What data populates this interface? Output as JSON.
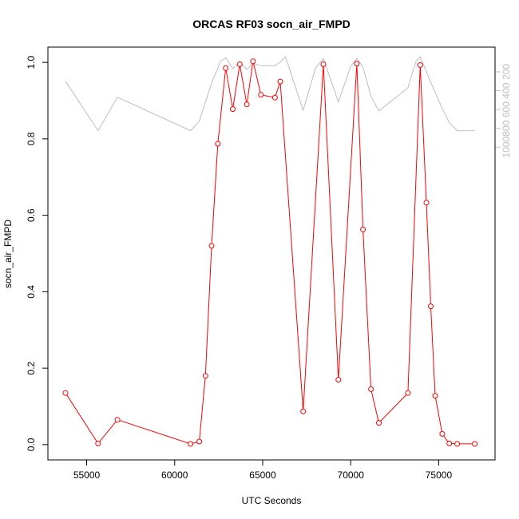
{
  "chart_data": {
    "type": "line",
    "title": "ORCAS RF03 socn_air_FMPD",
    "xlabel": "UTC Seconds",
    "ylabel": "socn_air_FMPD",
    "xlim": [
      52800,
      78200
    ],
    "ylim": [
      -0.04,
      1.04
    ],
    "x_ticks": [
      55000,
      60000,
      65000,
      70000,
      75000
    ],
    "y_ticks": [
      0.0,
      0.2,
      0.4,
      0.6,
      0.8,
      1.0
    ],
    "y_tick_labels": [
      "0.0",
      "0.2",
      "0.4",
      "0.6",
      "0.8",
      "1.0"
    ],
    "y2_reversed": true,
    "y2_ticks": [
      200,
      400,
      600,
      800,
      1000
    ],
    "y2_px_per_unit": 0.1178,
    "y2_anchor": {
      "value": 200,
      "px": 90
    },
    "grid": false,
    "series": [
      {
        "name": "",
        "color": "#ff0000",
        "markers": "open-circle",
        "points": [
          [
            53800,
            0.135
          ],
          [
            55650,
            0.003
          ],
          [
            56750,
            0.065
          ],
          [
            60900,
            0.002
          ],
          [
            61400,
            0.008
          ],
          [
            61750,
            0.18
          ],
          [
            62100,
            0.52
          ],
          [
            62450,
            0.787
          ],
          [
            62900,
            0.985
          ],
          [
            63300,
            0.878
          ],
          [
            63700,
            0.995
          ],
          [
            64100,
            0.89
          ],
          [
            64450,
            1.003
          ],
          [
            64900,
            0.915
          ],
          [
            65700,
            0.908
          ],
          [
            66000,
            0.95
          ],
          [
            67300,
            0.087
          ],
          [
            68450,
            0.995
          ],
          [
            69300,
            0.17
          ],
          [
            70350,
            0.997
          ],
          [
            70700,
            0.563
          ],
          [
            71150,
            0.145
          ],
          [
            71600,
            0.057
          ],
          [
            73250,
            0.135
          ],
          [
            73950,
            0.993
          ],
          [
            74300,
            0.633
          ],
          [
            74550,
            0.362
          ],
          [
            74800,
            0.128
          ],
          [
            75200,
            0.028
          ],
          [
            75600,
            0.003
          ],
          [
            76050,
            0.002
          ],
          [
            77050,
            0.002
          ]
        ]
      },
      {
        "name": "",
        "color": "#bebebe",
        "axis": "right",
        "markers": "none",
        "points": [
          [
            53800,
            300
          ],
          [
            55650,
            825
          ],
          [
            56750,
            470
          ],
          [
            60900,
            825
          ],
          [
            61400,
            725
          ],
          [
            61750,
            520
          ],
          [
            62100,
            320
          ],
          [
            62450,
            160
          ],
          [
            62600,
            90
          ],
          [
            62900,
            50
          ],
          [
            63300,
            165
          ],
          [
            63700,
            90
          ],
          [
            64100,
            175
          ],
          [
            64450,
            110
          ],
          [
            64900,
            135
          ],
          [
            65700,
            135
          ],
          [
            66000,
            95
          ],
          [
            66300,
            40
          ],
          [
            67300,
            610
          ],
          [
            68000,
            160
          ],
          [
            68450,
            60
          ],
          [
            69300,
            520
          ],
          [
            70000,
            140
          ],
          [
            70350,
            60
          ],
          [
            70700,
            150
          ],
          [
            71150,
            460
          ],
          [
            71600,
            615
          ],
          [
            73250,
            370
          ],
          [
            73700,
            90
          ],
          [
            73950,
            40
          ],
          [
            74550,
            310
          ],
          [
            75200,
            590
          ],
          [
            75600,
            740
          ],
          [
            76050,
            825
          ],
          [
            77050,
            826
          ]
        ]
      }
    ]
  }
}
